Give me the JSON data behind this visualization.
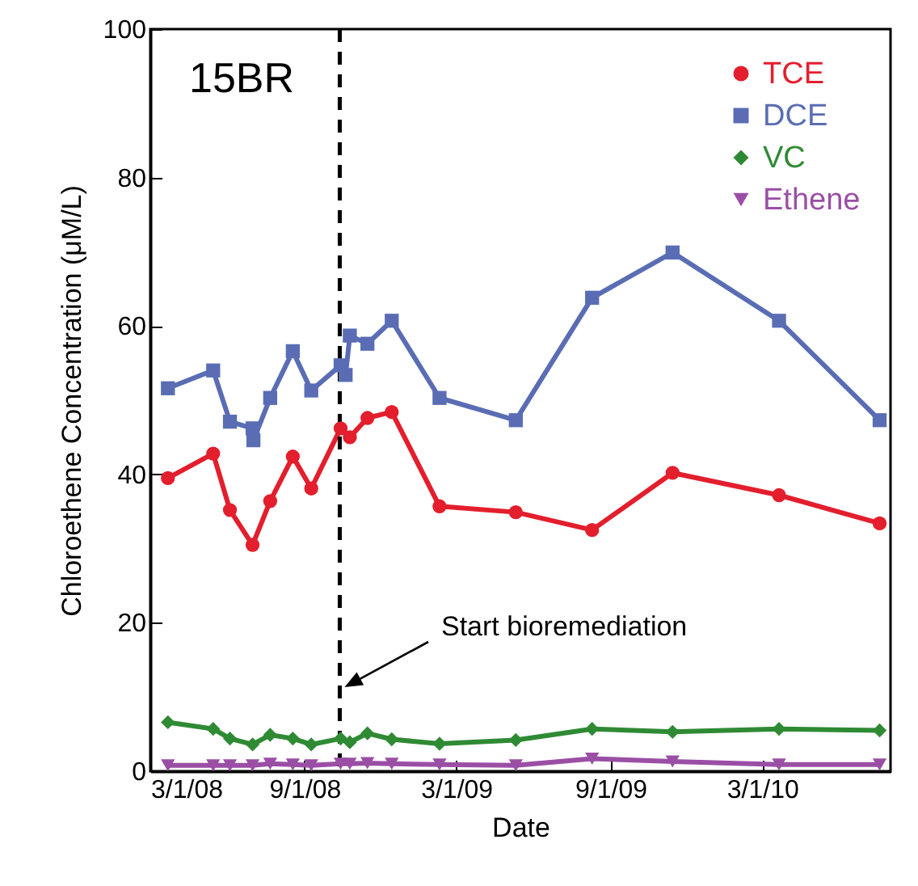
{
  "chart_data": {
    "type": "line",
    "xlabel": "Date",
    "ylabel": "Chloroethene Concentration (μM/L)",
    "xlim": [
      "2008-03-01",
      "2010-08-01"
    ],
    "ylim": [
      0,
      100
    ],
    "yticks": [
      0,
      20,
      40,
      60,
      80,
      100
    ],
    "xticks": [
      {
        "value": "2008-03-01",
        "label": "3/1/08"
      },
      {
        "value": "2008-09-01",
        "label": "9/1/08"
      },
      {
        "value": "2009-03-01",
        "label": "3/1/09"
      },
      {
        "value": "2009-09-01",
        "label": "9/1/09"
      },
      {
        "value": "2010-03-01",
        "label": "3/1/10"
      }
    ],
    "legend": "top right",
    "grid": false,
    "line_style": "solid",
    "series": [
      {
        "name": "TCE",
        "color": "#e31e2d",
        "marker": "circle",
        "x": [
          "2008-03-22",
          "2008-05-15",
          "2008-06-04",
          "2008-07-01",
          "2008-07-22",
          "2008-08-18",
          "2008-09-09",
          "2008-10-14",
          "2008-10-25",
          "2008-11-15",
          "2008-12-14",
          "2009-02-09",
          "2009-05-11",
          "2009-08-10",
          "2009-11-14",
          "2010-03-21",
          "2010-07-19"
        ],
        "values": [
          39.5,
          42.8,
          35.2,
          30.5,
          36.4,
          42.4,
          38.1,
          46.2,
          45.0,
          47.6,
          48.4,
          35.7,
          34.9,
          32.5,
          40.2,
          37.2,
          33.4
        ]
      },
      {
        "name": "DCE",
        "color": "#5a6db4",
        "marker": "square",
        "x": [
          "2008-03-22",
          "2008-05-15",
          "2008-06-04",
          "2008-07-01",
          "2008-07-02",
          "2008-07-22",
          "2008-08-18",
          "2008-09-09",
          "2008-10-14",
          "2008-10-20",
          "2008-10-25",
          "2008-11-15",
          "2008-12-14",
          "2009-02-09",
          "2009-05-11",
          "2009-08-10",
          "2009-11-14",
          "2010-03-21",
          "2010-07-19"
        ],
        "values": [
          51.6,
          54.0,
          47.1,
          46.2,
          44.6,
          50.3,
          56.6,
          51.3,
          54.7,
          53.4,
          58.7,
          57.6,
          60.7,
          50.3,
          47.3,
          63.8,
          69.9,
          60.7,
          47.3
        ]
      },
      {
        "name": "VC",
        "color": "#2f8a34",
        "marker": "diamond",
        "x": [
          "2008-03-22",
          "2008-05-15",
          "2008-06-04",
          "2008-07-01",
          "2008-07-22",
          "2008-08-18",
          "2008-09-09",
          "2008-10-14",
          "2008-10-25",
          "2008-11-15",
          "2008-12-14",
          "2009-02-09",
          "2009-05-11",
          "2009-08-10",
          "2009-11-14",
          "2010-03-21",
          "2010-07-19"
        ],
        "values": [
          6.6,
          5.7,
          4.4,
          3.6,
          4.9,
          4.4,
          3.6,
          4.4,
          3.9,
          5.1,
          4.3,
          3.7,
          4.2,
          5.7,
          5.3,
          5.7,
          5.5
        ]
      },
      {
        "name": "Ethene",
        "color": "#9a4fa5",
        "marker": "triangle-down",
        "x": [
          "2008-03-22",
          "2008-05-15",
          "2008-06-04",
          "2008-07-01",
          "2008-07-22",
          "2008-08-18",
          "2008-09-09",
          "2008-10-14",
          "2008-10-25",
          "2008-11-15",
          "2008-12-14",
          "2009-02-09",
          "2009-05-11",
          "2009-08-10",
          "2009-11-14",
          "2010-03-21",
          "2010-07-19"
        ],
        "values": [
          0.8,
          0.8,
          0.8,
          0.8,
          1.0,
          0.9,
          0.8,
          1.0,
          1.0,
          1.1,
          1.0,
          0.9,
          0.8,
          1.7,
          1.3,
          0.9,
          0.9
        ]
      }
    ],
    "ref_lines": [
      {
        "axis": "x",
        "value": "2008-10-13",
        "color": "#000000",
        "line_style": "dashed"
      }
    ],
    "annotations": [
      "15BR",
      "Start bioremediation"
    ]
  }
}
